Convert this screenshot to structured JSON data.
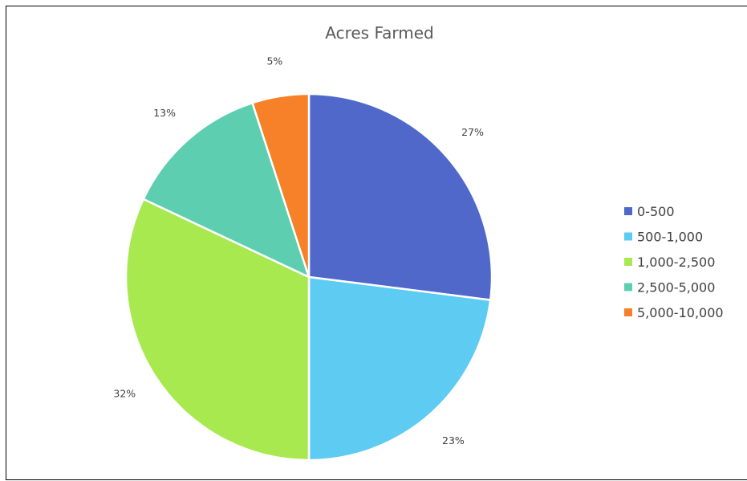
{
  "chart_data": {
    "type": "pie",
    "title": "Acres Farmed",
    "legend_position": "right",
    "start_angle_deg": 0,
    "direction": "clockwise",
    "slices": [
      {
        "name": "0-500",
        "value": 27,
        "label": "27%",
        "color": "#4F68C9"
      },
      {
        "name": "500-1,000",
        "value": 23,
        "label": "23%",
        "color": "#5ECBF3"
      },
      {
        "name": "1,000-2,500",
        "value": 32,
        "label": "32%",
        "color": "#A8E94F"
      },
      {
        "name": "2,500-5,000",
        "value": 13,
        "label": "13%",
        "color": "#5DCFB0"
      },
      {
        "name": "5,000-10,000",
        "value": 5,
        "label": "5%",
        "color": "#F68128"
      }
    ]
  }
}
